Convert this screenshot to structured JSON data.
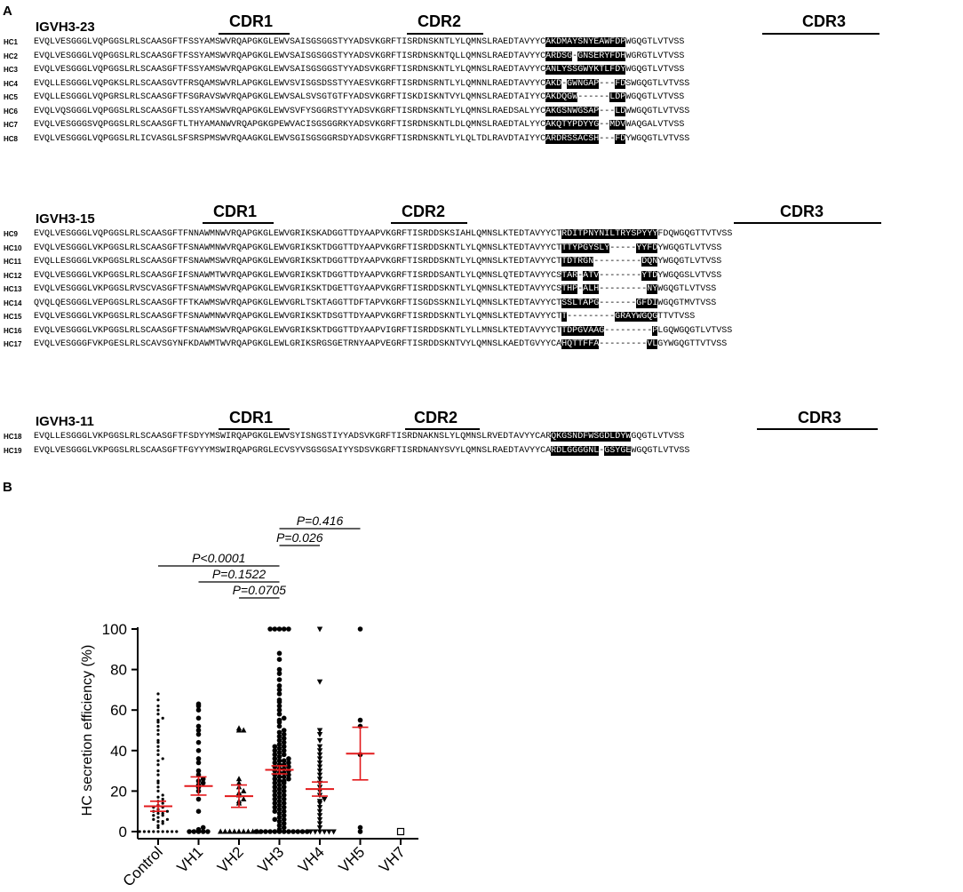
{
  "panel_a": {
    "letter": "A",
    "groups": [
      {
        "gene": "IGVH3-23",
        "cdr_labels": [
          "CDR1",
          "CDR2",
          "CDR3"
        ],
        "rows": [
          {
            "id": "HC1",
            "seq": "EVQLVESGGGLVQPGGSLRLSCAASGFTFSSYAMSWVRQAPGKGLEWVSAISGSGGSTYYADSVKGRFTISRDNSKNTLYLQMNSLRAEDTAVYYCAKDMAYSNYEAWFDPWGQGTLVTVSS"
          },
          {
            "id": "HC2",
            "seq": "EVQLVESGGGLVQPGGSLRLSCAASGFTFSSYAMSWVRQAPGKGLEWVSAISGSGGSTYYADSVKGRFTISRDNSKNTQLLQMNSLRAEDTAVYYCARDSG-GNSERYFDHWGRGTLVTVSS"
          },
          {
            "id": "HC3",
            "seq": "EVQLVESGGGLVQPGGSLRLSCAASGFTFSSYAMSWVRQAPGKGLEWVSAISGSGGSTYYADSVKGRFTISRDNSKNTLYLQMNSLRAEDTAVYYCANLYSSGWYKTLFDYWGQGTLVTVSS"
          },
          {
            "id": "HC4",
            "seq": "EVQLLESGGGLVQPGKSLRLSCAASGVTFRSQAMSWVRLAPGKGLEWVSVISGSDSSTYYAESVKGRFTISRDNSRNTLYLQMNNLRAEDTAVYYCAKD-GWNGAP---FDSWGQGTLVTVSS"
          },
          {
            "id": "HC5",
            "seq": "EVQLLESGGGLVQPGRSLRLSCAASGFTFSGRAVSWVRQAPGKGLEWVSALSVSGTGTFYADSVKGRFTISKDISKNTVYLQMNSLRAEDTAIYYCAKDQGW------LDPWGQGTLVTVSS"
          },
          {
            "id": "HC6",
            "seq": "EVQLVQSGGGLVQPGGSLRLSCAASGFTLSSYAMSWVRQAPGKGLEWVSVFYSGGRSTYYADSVKGRFTISRDNSKNTLYLQMNSLRAEDSALYYCAKGSNWGSAP---LDWWGQGTLVTVSS"
          },
          {
            "id": "HC7",
            "seq": "EVQLVESGGGSVQPGGSLRLSCAASGFTLTHYAMANWVRQAPGKGPEWVACISGSGGRKYADSVKGRFTISRDNSKNTLDLQMNSLRAEDTALYYCAKQTYPDYYG--MDVWAQGALVTVSS"
          },
          {
            "id": "HC8",
            "seq": "EVQLVESGGGLVQPGGSLRLICVASGLSFSRSPMSWVRQAAGKGLEWVSGISGSGGRSDYADSVKGRFTISRDNSKNTLYLQLTDLRAVDTAIYYCARDRSSACSH---FDYWGQGTLVTVSS"
          }
        ]
      },
      {
        "gene": "IGVH3-15",
        "cdr_labels": [
          "CDR1",
          "CDR2",
          "CDR3"
        ],
        "rows": [
          {
            "id": "HC9",
            "seq": "EVQLVESGGGLVQPGGSLRLSCAASGFTFNNAWMNWVRQAPGKGLEWVGRIKSKADGGTTDYAAPVKGRFTISRDDSKSIAHLQMNSLKTEDTAVYYCTRDITPNYNILTRYSPYYYFDQWGQGTTVTVSS"
          },
          {
            "id": "HC10",
            "seq": "EVQLVESGGGLVKPGGSLRLSCAASGFTFSNAWMNWVRQAPGKGLEWVGRIKSKTDGGTTDYAAPVKGRFTISRDDSKNTLYLQMNSLKTEDTAVYYCTTTYPGYSLY-----YYFDYWGQGTLVTVSS"
          },
          {
            "id": "HC11",
            "seq": "EVQLLESGGGLVKPGGSLRLSCAASGFTFSNAWMSWVRQAPGKGLEWVGRIKSKTDGGTTDYAAPVKGRFTISRDDSKNTLYLQMNSLKTEDTAVYYCTTDTRGN---------DQNYWGQGTLVTVSS"
          },
          {
            "id": "HC12",
            "seq": "EVQLVESGGGLVKPGGSLRLSCAASGFIFSNAWMTWVRQAPGKGLEWVGRIKSKTDGGTTDYAAPVKGRFTISRDDSANTLYLQMNSLQTEDTAVYYCSTAR-ATV--------YTDYWGQGSLVTVSS"
          },
          {
            "id": "HC13",
            "seq": "EVQLVESGGGLVKPGGSLRVSCVASGFTFSNAWMSWVRQAPGKGLEWVGRIKSKTDGETTGYAAPVKGRFTISRDDSKNTLYLQMNSLKTEDTAVYYCSTHP-ALH---------NYWGQGTLVTVSS"
          },
          {
            "id": "HC14",
            "seq": "QVQLQESGGGLVEPGGSLRLSCAASGFTFTKAWMSWVRQAPGKGLEWVGRLTSKTAGGTTDFTAPVKGRFTISGDSSKNILYLQMNSLKTEDTAVYYCTSSLTAPG-------GFDIWGQGTMVTVSS"
          },
          {
            "id": "HC15",
            "seq": "EVQLVESGGGLVKPGGSLRLSCAASGFTFSNAWMNWVRQAPGKGLEWVGRIKSKTDSGTTDYAAPVKGRFTISRDDSKNTLYLQMNSLKTEDTAVYYCTT---------GRAYWGQGTTVTVSS"
          },
          {
            "id": "HC16",
            "seq": "EVQLVESGGGLVKPGGSLRLSCAASGFTFSNAWMSWVRQAPGKGLEWVGRIKSKTDGGTTDYAAPVIGRFTISRDDSKNTLYLLMNSLKTEDTAVYYCTTDPGVAAG---------PLGQWGQGTLVTVSS"
          },
          {
            "id": "HC17",
            "seq": "EVQLVESGGGFVKPGESLRLSCAVSGYNFKDAWMTWVRQAPGKGLEWLGRIKSRGSGETRNYAAPVEGRFTISRDDSKNTVYLQMNSLKAEDTGVYYCAHQTTFFA---------VLGYWGQGTTVTVSS"
          }
        ]
      },
      {
        "gene": "IGVH3-11",
        "cdr_labels": [
          "CDR1",
          "CDR2",
          "CDR3"
        ],
        "rows": [
          {
            "id": "HC18",
            "seq": "EVQLLESGGGLVKPGGSLRLSCAASGFTFSDYYMSWIRQAPGKGLEWVSYISNGSTIYYADSVKGRFTISRDNAKNSLYLQMNSLRVEDTAVYYCARQKGSNDFWSGDLDYWGQGTLVTVSS"
          },
          {
            "id": "HC19",
            "seq": "EVQLVESGGGLVKPGGSLRLSCAASGFTFGYYYMSWIRQAPGRGLECVSYVSGSGSAIYYSDSVKGRFTISRDNANYSVYLQMNSLRAEDTAVYYCARDLGGGGNL-GSYGEWGQGTLVTVSS"
          }
        ]
      }
    ]
  },
  "panel_b": {
    "letter": "B",
    "chart_data": {
      "type": "scatter",
      "ylabel": "HC secretion efficiency (%)",
      "ylim": [
        0,
        100
      ],
      "yticks": [
        0,
        20,
        40,
        60,
        80,
        100
      ],
      "categories": [
        "Control",
        "VH1",
        "VH2",
        "VH3",
        "VH4",
        "VH5",
        "VH7"
      ],
      "markers": [
        "dot-small",
        "circle",
        "triangle-up",
        "circle",
        "triangle-down",
        "circle",
        "square-open"
      ],
      "mean": [
        12.5,
        22.5,
        17.5,
        30.5,
        21.0,
        38.5,
        0
      ],
      "error": [
        2.5,
        4.5,
        5.5,
        2.0,
        3.5,
        13.0,
        0
      ],
      "points": [
        [
          0,
          0,
          0,
          0,
          0,
          0,
          0,
          0,
          0,
          2,
          3,
          4,
          5,
          5,
          6,
          6,
          7,
          8,
          8,
          9,
          9,
          10,
          10,
          11,
          12,
          12,
          13,
          14,
          15,
          16,
          17,
          18,
          20,
          22,
          24,
          25,
          28,
          30,
          33,
          35,
          36,
          38,
          40,
          42,
          44,
          45,
          48,
          50,
          52,
          54,
          55,
          56,
          58,
          60,
          62,
          65,
          68
        ],
        [
          0,
          0,
          0,
          0,
          0,
          1,
          2,
          10,
          16,
          20,
          22,
          23,
          24,
          25,
          26,
          28,
          30,
          34,
          36,
          40,
          44,
          48,
          50,
          52,
          56,
          60,
          62,
          63
        ],
        [
          0,
          0,
          0,
          0,
          0,
          0,
          0,
          0,
          0,
          14,
          15,
          16,
          18,
          19,
          20,
          22,
          24,
          26,
          50,
          50,
          51
        ],
        [
          0,
          0,
          0,
          0,
          0,
          0,
          0,
          0,
          0,
          0,
          0,
          0,
          1,
          2,
          3,
          4,
          5,
          6,
          6,
          7,
          8,
          9,
          10,
          10,
          11,
          12,
          12,
          13,
          14,
          14,
          15,
          16,
          16,
          17,
          18,
          18,
          19,
          20,
          20,
          21,
          22,
          22,
          23,
          24,
          24,
          25,
          25,
          26,
          26,
          27,
          27,
          28,
          28,
          29,
          29,
          30,
          30,
          31,
          31,
          32,
          32,
          33,
          33,
          34,
          34,
          35,
          35,
          36,
          36,
          37,
          38,
          38,
          39,
          40,
          40,
          41,
          42,
          42,
          43,
          44,
          45,
          46,
          47,
          48,
          49,
          50,
          52,
          54,
          55,
          56,
          58,
          60,
          62,
          64,
          65,
          68,
          70,
          72,
          75,
          78,
          80,
          85,
          88,
          100,
          100,
          100,
          100,
          100
        ],
        [
          0,
          0,
          0,
          0,
          0,
          0,
          2,
          4,
          6,
          8,
          10,
          12,
          14,
          15,
          16,
          18,
          20,
          22,
          24,
          26,
          28,
          30,
          32,
          34,
          36,
          38,
          40,
          42,
          45,
          48,
          50,
          74,
          100
        ],
        [
          0,
          2,
          38,
          52,
          55,
          100
        ],
        [
          0
        ]
      ],
      "comparisons": [
        {
          "label": "P<0.0001",
          "from": "Control",
          "to": "VH3"
        },
        {
          "label": "P=0.1522",
          "from": "VH1",
          "to": "VH3"
        },
        {
          "label": "P=0.0705",
          "from": "VH2",
          "to": "VH3"
        },
        {
          "label": "P=0.026",
          "from": "VH3",
          "to": "VH4"
        },
        {
          "label": "P=0.416",
          "from": "VH3",
          "to": "VH5"
        }
      ],
      "mean_color": "#e31a1c"
    }
  }
}
